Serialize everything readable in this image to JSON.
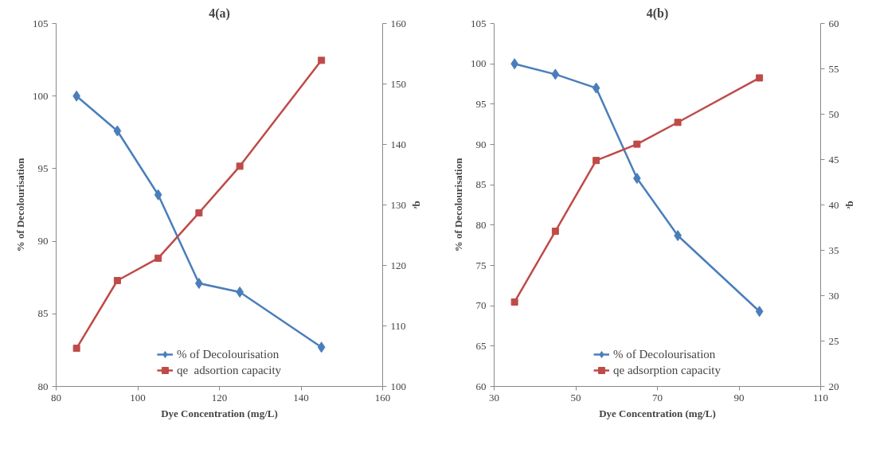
{
  "chart_data": [
    {
      "type": "line",
      "title": "4(a)",
      "xlabel": "Dye Concentration (mg/L)",
      "ylabel": "% of Decolourisation",
      "y2label": "qₑ",
      "x": [
        85,
        95,
        105,
        115,
        125,
        145
      ],
      "xlim": [
        80,
        160
      ],
      "xticks": [
        80,
        100,
        120,
        140,
        160
      ],
      "ylim": [
        80,
        105
      ],
      "yticks": [
        80,
        85,
        90,
        95,
        100,
        105
      ],
      "y2lim": [
        100,
        160
      ],
      "y2ticks": [
        100,
        110,
        120,
        130,
        140,
        150,
        160
      ],
      "grid": false,
      "legend": "bottom",
      "line_style": "solid",
      "series": [
        {
          "name": "% of Decolourisation",
          "color": "#4a7ebb",
          "marker": "diamond",
          "values": [
            100.0,
            97.6,
            93.2,
            87.1,
            86.5,
            82.7
          ]
        },
        {
          "name": "qe  adsortion capacity",
          "color": "#be4b48",
          "marker": "square",
          "axis": "y2",
          "values": [
            106.3,
            117.5,
            121.2,
            128.7,
            136.4,
            153.9
          ]
        }
      ]
    },
    {
      "type": "line",
      "title": "4(b)",
      "xlabel": "Dye Concentration (mg/L)",
      "ylabel": "% of Decolourisation",
      "y2label": "qₑ",
      "x": [
        35,
        45,
        55,
        65,
        75,
        95
      ],
      "xlim": [
        30,
        110
      ],
      "xticks": [
        30,
        50,
        70,
        90,
        110
      ],
      "ylim": [
        60,
        105
      ],
      "yticks": [
        60,
        65,
        70,
        75,
        80,
        85,
        90,
        95,
        100,
        105
      ],
      "y2lim": [
        20,
        60
      ],
      "y2ticks": [
        20,
        25,
        30,
        35,
        40,
        45,
        50,
        55,
        60
      ],
      "grid": false,
      "legend": "bottom",
      "line_style": "solid",
      "series": [
        {
          "name": "% of Decolourisation",
          "color": "#4a7ebb",
          "marker": "diamond",
          "values": [
            100.0,
            98.7,
            97.0,
            85.8,
            78.7,
            69.3
          ]
        },
        {
          "name": "qe adsorption capacity",
          "color": "#be4b48",
          "marker": "square",
          "axis": "y2",
          "values": [
            29.3,
            37.1,
            44.9,
            46.7,
            49.1,
            54.0
          ]
        }
      ]
    }
  ]
}
